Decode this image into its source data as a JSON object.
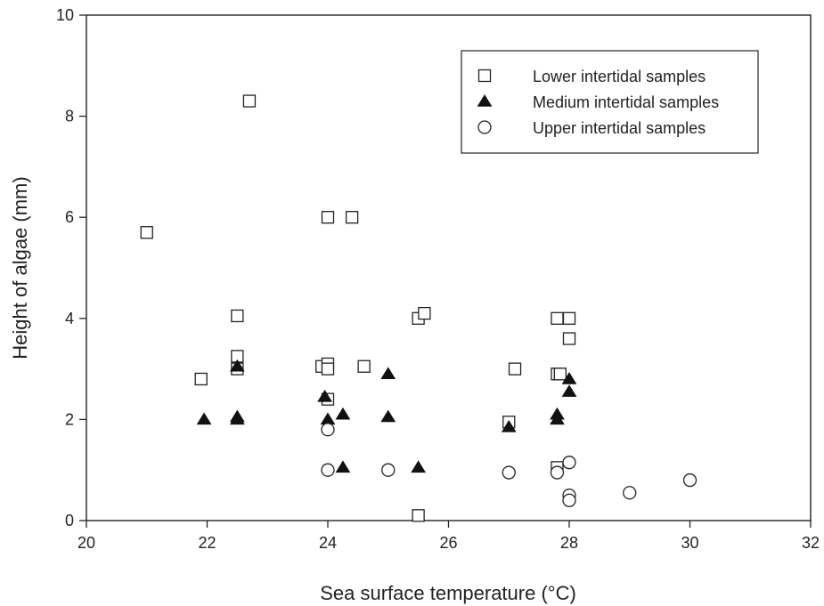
{
  "chart_data": {
    "type": "scatter",
    "title": "",
    "xlabel": "Sea surface temperature (°C)",
    "ylabel": "Height of algae (mm)",
    "xlim": [
      20,
      32
    ],
    "ylim": [
      0,
      10
    ],
    "x_ticks": [
      "20",
      "22",
      "24",
      "26",
      "28",
      "30",
      "32"
    ],
    "y_ticks": [
      "0",
      "2",
      "4",
      "6",
      "8",
      "10"
    ],
    "grid": false,
    "legend_position": "top-right",
    "series": [
      {
        "name": "Lower intertidal samples",
        "marker": "open-square",
        "color": "#222222",
        "points": [
          [
            21.0,
            5.7
          ],
          [
            21.9,
            2.8
          ],
          [
            22.5,
            4.05
          ],
          [
            22.5,
            3.25
          ],
          [
            22.5,
            3.0
          ],
          [
            22.7,
            8.3
          ],
          [
            23.9,
            3.05
          ],
          [
            24.0,
            3.1
          ],
          [
            24.0,
            3.0
          ],
          [
            24.0,
            2.4
          ],
          [
            24.0,
            6.0
          ],
          [
            24.4,
            6.0
          ],
          [
            24.6,
            3.05
          ],
          [
            25.5,
            4.0
          ],
          [
            25.6,
            4.1
          ],
          [
            25.5,
            0.1
          ],
          [
            27.0,
            1.95
          ],
          [
            27.1,
            3.0
          ],
          [
            27.8,
            4.0
          ],
          [
            28.0,
            4.0
          ],
          [
            28.0,
            3.6
          ],
          [
            27.8,
            2.9
          ],
          [
            27.85,
            2.9
          ],
          [
            27.8,
            1.05
          ]
        ]
      },
      {
        "name": "Medium intertidal samples",
        "marker": "filled-triangle",
        "color": "#111111",
        "points": [
          [
            21.95,
            2.0
          ],
          [
            22.5,
            3.05
          ],
          [
            22.5,
            2.05
          ],
          [
            22.5,
            2.0
          ],
          [
            23.95,
            2.45
          ],
          [
            24.0,
            2.0
          ],
          [
            24.25,
            2.1
          ],
          [
            24.25,
            1.05
          ],
          [
            25.0,
            2.9
          ],
          [
            25.0,
            2.05
          ],
          [
            25.5,
            1.05
          ],
          [
            27.0,
            1.85
          ],
          [
            27.8,
            2.1
          ],
          [
            27.8,
            2.0
          ],
          [
            28.0,
            2.8
          ],
          [
            28.0,
            2.55
          ]
        ]
      },
      {
        "name": "Upper intertidal samples",
        "marker": "open-circle",
        "color": "#222222",
        "points": [
          [
            24.0,
            1.8
          ],
          [
            24.0,
            1.0
          ],
          [
            25.0,
            1.0
          ],
          [
            27.0,
            0.95
          ],
          [
            27.8,
            0.95
          ],
          [
            28.0,
            1.15
          ],
          [
            28.0,
            0.5
          ],
          [
            28.0,
            0.4
          ],
          [
            29.0,
            0.55
          ],
          [
            30.0,
            0.8
          ]
        ]
      }
    ]
  }
}
